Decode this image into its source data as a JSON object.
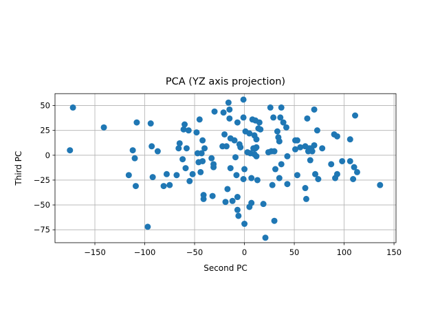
{
  "chart_data": {
    "type": "scatter",
    "title": "PCA (YZ axis projection)",
    "xlabel": "Second PC",
    "ylabel": "Third PC",
    "xlim": [
      -190,
      152
    ],
    "ylim": [
      -88,
      62
    ],
    "x_ticks": [
      -150,
      -100,
      -50,
      0,
      50,
      100,
      150
    ],
    "y_ticks": [
      -75,
      -50,
      -25,
      0,
      25,
      50
    ],
    "x_tick_labels": [
      "−150",
      "−100",
      "−50",
      "0",
      "50",
      "100",
      "150"
    ],
    "y_tick_labels": [
      "−75",
      "−50",
      "−25",
      "0",
      "25",
      "50"
    ],
    "grid": true,
    "marker_color": "#1f77b4",
    "points": [
      [
        -172,
        48
      ],
      [
        -175,
        5
      ],
      [
        -141,
        28
      ],
      [
        -116,
        -20
      ],
      [
        -112,
        5
      ],
      [
        -110,
        -3
      ],
      [
        -109,
        -31
      ],
      [
        -108,
        33
      ],
      [
        -97,
        -72
      ],
      [
        -94,
        32
      ],
      [
        -93,
        9
      ],
      [
        -92,
        -22
      ],
      [
        -87,
        4
      ],
      [
        -81,
        -31
      ],
      [
        -78,
        -19
      ],
      [
        -75,
        -30
      ],
      [
        -68,
        -20
      ],
      [
        -66,
        7
      ],
      [
        -65,
        12
      ],
      [
        -62,
        -4
      ],
      [
        -61,
        26
      ],
      [
        -60,
        31
      ],
      [
        -59,
        -13
      ],
      [
        -58,
        7
      ],
      [
        -56,
        25
      ],
      [
        -55,
        -26
      ],
      [
        -52,
        -19
      ],
      [
        -48,
        23
      ],
      [
        -47,
        2
      ],
      [
        -46,
        -7
      ],
      [
        -45,
        36
      ],
      [
        -44,
        -17
      ],
      [
        -43,
        2
      ],
      [
        -42,
        15
      ],
      [
        -42,
        -6
      ],
      [
        -41,
        -44
      ],
      [
        -41,
        -40
      ],
      [
        -40,
        7
      ],
      [
        -33,
        -3
      ],
      [
        -32,
        -41
      ],
      [
        -31,
        -12
      ],
      [
        -31,
        -9
      ],
      [
        -30,
        44
      ],
      [
        -22,
        9
      ],
      [
        -21,
        43
      ],
      [
        -20,
        21
      ],
      [
        -19,
        -47
      ],
      [
        -18,
        9
      ],
      [
        -17,
        -34
      ],
      [
        -16,
        53
      ],
      [
        -15,
        37
      ],
      [
        -15,
        46
      ],
      [
        -14,
        -13
      ],
      [
        -14,
        17
      ],
      [
        -12,
        -46
      ],
      [
        -10,
        15
      ],
      [
        -9,
        -2
      ],
      [
        -8,
        -20
      ],
      [
        -7,
        -42
      ],
      [
        -7,
        -55
      ],
      [
        -7,
        33
      ],
      [
        -6,
        -61
      ],
      [
        -5,
        11
      ],
      [
        -4,
        8
      ],
      [
        -1,
        38
      ],
      [
        -1,
        56
      ],
      [
        -1,
        -24
      ],
      [
        0,
        -69
      ],
      [
        0,
        -14
      ],
      [
        1,
        24
      ],
      [
        3,
        3
      ],
      [
        5,
        22
      ],
      [
        5,
        -52
      ],
      [
        6,
        2
      ],
      [
        7,
        -48
      ],
      [
        7,
        -23
      ],
      [
        8,
        36
      ],
      [
        9,
        7
      ],
      [
        10,
        1
      ],
      [
        10,
        20
      ],
      [
        11,
        35
      ],
      [
        11,
        7
      ],
      [
        12,
        -1
      ],
      [
        12,
        8
      ],
      [
        12,
        16
      ],
      [
        13,
        -25
      ],
      [
        14,
        27
      ],
      [
        15,
        33
      ],
      [
        16,
        26
      ],
      [
        19,
        -49
      ],
      [
        21,
        -83
      ],
      [
        24,
        3
      ],
      [
        26,
        48
      ],
      [
        27,
        4
      ],
      [
        28,
        -30
      ],
      [
        29,
        38
      ],
      [
        30,
        4
      ],
      [
        30,
        -66
      ],
      [
        31,
        -14
      ],
      [
        33,
        24
      ],
      [
        34,
        18
      ],
      [
        35,
        14
      ],
      [
        35,
        -23
      ],
      [
        36,
        38
      ],
      [
        37,
        48
      ],
      [
        37,
        -9
      ],
      [
        39,
        33
      ],
      [
        42,
        28
      ],
      [
        43,
        -1
      ],
      [
        43,
        -29
      ],
      [
        51,
        15
      ],
      [
        51,
        6
      ],
      [
        53,
        15
      ],
      [
        53,
        -20
      ],
      [
        56,
        8
      ],
      [
        61,
        -33
      ],
      [
        61,
        9
      ],
      [
        62,
        -44
      ],
      [
        63,
        37
      ],
      [
        64,
        4
      ],
      [
        65,
        7
      ],
      [
        66,
        -5
      ],
      [
        67,
        7
      ],
      [
        68,
        4
      ],
      [
        70,
        10
      ],
      [
        70,
        46
      ],
      [
        71,
        -19
      ],
      [
        73,
        25
      ],
      [
        74,
        -24
      ],
      [
        78,
        7
      ],
      [
        87,
        -9
      ],
      [
        90,
        21
      ],
      [
        91,
        -23
      ],
      [
        93,
        -19
      ],
      [
        93,
        19
      ],
      [
        98,
        -6
      ],
      [
        106,
        -6
      ],
      [
        106,
        16
      ],
      [
        109,
        -24
      ],
      [
        110,
        -12
      ],
      [
        111,
        40
      ],
      [
        113,
        -17
      ],
      [
        136,
        -30
      ]
    ]
  }
}
